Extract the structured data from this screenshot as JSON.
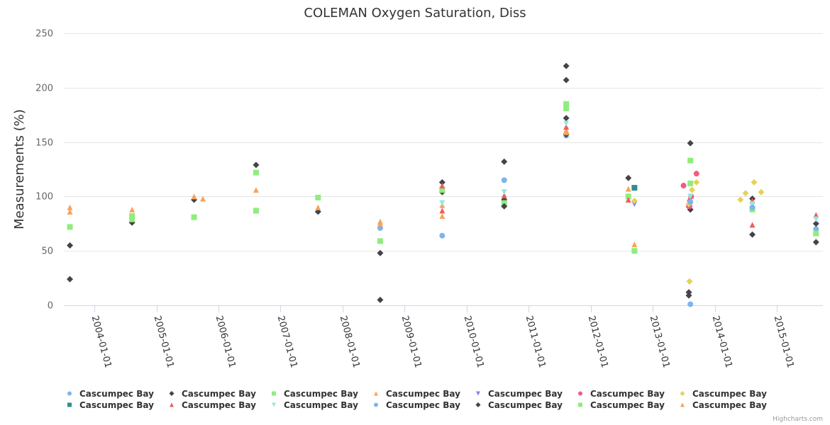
{
  "chart_data": {
    "type": "scatter",
    "title": "COLEMAN Oxygen Saturation, Diss",
    "xlabel": "",
    "ylabel": "Measurements (%)",
    "ylim": [
      0,
      250
    ],
    "yticks": [
      0,
      50,
      100,
      150,
      200,
      250
    ],
    "xlim": [
      "2003-07-01",
      "2015-10-01"
    ],
    "xticks": [
      "2004-01-01",
      "2005-01-01",
      "2006-01-01",
      "2007-01-01",
      "2008-01-01",
      "2009-01-01",
      "2010-01-01",
      "2011-01-01",
      "2012-01-01",
      "2013-01-01",
      "2014-01-01",
      "2015-01-01"
    ],
    "grid": true,
    "legend_position": "bottom",
    "credits": "Highcharts.com",
    "series": [
      {
        "name": "Cascumpec Bay",
        "marker": "circle",
        "color": "#7cb5ec",
        "points": [
          [
            "2008-08-10",
            71
          ],
          [
            "2009-08-10",
            64
          ],
          [
            "2010-08-10",
            115
          ],
          [
            "2011-08-10",
            156
          ],
          [
            "2013-08-10",
            1
          ],
          [
            "2015-08-20",
            70
          ]
        ]
      },
      {
        "name": "Cascumpec Bay",
        "marker": "diamond",
        "color": "#434348",
        "points": [
          [
            "2003-08-10",
            55
          ],
          [
            "2003-08-10",
            24
          ],
          [
            "2004-08-10",
            76
          ],
          [
            "2005-08-10",
            97
          ],
          [
            "2006-08-10",
            129
          ],
          [
            "2007-08-10",
            86
          ],
          [
            "2008-08-10",
            48
          ],
          [
            "2008-08-10",
            5
          ],
          [
            "2009-08-10",
            113
          ],
          [
            "2009-08-10",
            104
          ],
          [
            "2010-08-10",
            132
          ],
          [
            "2010-08-10",
            97
          ],
          [
            "2011-08-10",
            220
          ],
          [
            "2011-08-10",
            207
          ],
          [
            "2011-08-10",
            172
          ],
          [
            "2012-08-10",
            117
          ],
          [
            "2013-08-10",
            149
          ],
          [
            "2013-08-10",
            88
          ],
          [
            "2013-08-01",
            12
          ],
          [
            "2013-08-01",
            9
          ],
          [
            "2014-08-10",
            98
          ],
          [
            "2014-08-10",
            65
          ],
          [
            "2015-08-20",
            75
          ],
          [
            "2015-08-20",
            58
          ]
        ]
      },
      {
        "name": "Cascumpec Bay",
        "marker": "square",
        "color": "#90ed7d",
        "points": [
          [
            "2003-08-10",
            72
          ],
          [
            "2004-08-10",
            82
          ],
          [
            "2005-08-10",
            81
          ],
          [
            "2006-08-10",
            122
          ],
          [
            "2007-08-10",
            99
          ],
          [
            "2008-08-10",
            59
          ],
          [
            "2009-08-10",
            106
          ],
          [
            "2010-08-10",
            94
          ],
          [
            "2011-08-10",
            185
          ],
          [
            "2011-08-10",
            181
          ],
          [
            "2012-08-10",
            100
          ],
          [
            "2013-08-10",
            133
          ],
          [
            "2013-08-10",
            112
          ],
          [
            "2014-08-10",
            88
          ],
          [
            "2015-08-20",
            66
          ]
        ]
      },
      {
        "name": "Cascumpec Bay",
        "marker": "triangle",
        "color": "#f7a35c",
        "points": [
          [
            "2003-08-10",
            90
          ],
          [
            "2003-08-10",
            86
          ],
          [
            "2004-08-10",
            88
          ],
          [
            "2005-08-10",
            100
          ],
          [
            "2005-10-01",
            98
          ],
          [
            "2006-08-10",
            106
          ],
          [
            "2006-08-10",
            87
          ],
          [
            "2007-08-10",
            90
          ],
          [
            "2008-08-10",
            77
          ],
          [
            "2009-08-10",
            92
          ],
          [
            "2009-08-10",
            82
          ],
          [
            "2011-08-10",
            161
          ],
          [
            "2012-08-10",
            107
          ],
          [
            "2012-09-15",
            56
          ],
          [
            "2013-08-01",
            93
          ]
        ]
      },
      {
        "name": "Cascumpec Bay",
        "marker": "triangle-down",
        "color": "#8085e9",
        "points": [
          [
            "2012-09-15",
            93
          ]
        ]
      },
      {
        "name": "Cascumpec Bay",
        "marker": "circle",
        "color": "#f15c80",
        "points": [
          [
            "2013-07-01",
            110
          ],
          [
            "2013-09-15",
            121
          ],
          [
            "2013-08-01",
            91
          ],
          [
            "2013-08-05",
            91
          ],
          [
            "2013-08-15",
            100
          ]
        ]
      },
      {
        "name": "Cascumpec Bay",
        "marker": "diamond",
        "color": "#e4d354",
        "points": [
          [
            "2012-09-15",
            96
          ],
          [
            "2013-09-15",
            113
          ],
          [
            "2013-08-20",
            106
          ],
          [
            "2013-08-01",
            93
          ],
          [
            "2013-08-05",
            22
          ],
          [
            "2014-06-01",
            97
          ],
          [
            "2014-07-01",
            103
          ],
          [
            "2014-08-20",
            113
          ],
          [
            "2014-10-01",
            104
          ]
        ]
      },
      {
        "name": "Cascumpec Bay",
        "marker": "square",
        "color": "#2b908f",
        "points": [
          [
            "2012-09-15",
            108
          ]
        ]
      },
      {
        "name": "Cascumpec Bay",
        "marker": "triangle",
        "color": "#f45b5b",
        "points": [
          [
            "2009-08-10",
            110
          ],
          [
            "2009-08-10",
            87
          ],
          [
            "2010-08-10",
            101
          ],
          [
            "2011-08-10",
            164
          ],
          [
            "2012-08-10",
            97
          ],
          [
            "2013-08-05",
            98
          ],
          [
            "2014-08-10",
            96
          ],
          [
            "2014-08-10",
            74
          ],
          [
            "2015-08-20",
            83
          ]
        ]
      },
      {
        "name": "Cascumpec Bay",
        "marker": "triangle-down",
        "color": "#91e8e1",
        "points": [
          [
            "2009-08-10",
            94
          ],
          [
            "2010-08-10",
            104
          ],
          [
            "2011-08-10",
            167
          ],
          [
            "2013-08-10",
            100
          ],
          [
            "2014-08-10",
            93
          ],
          [
            "2015-08-20",
            79
          ]
        ]
      },
      {
        "name": "Cascumpec Bay",
        "marker": "circle",
        "color": "#7cb5ec",
        "points": [
          [
            "2013-08-10",
            95
          ],
          [
            "2014-08-10",
            90
          ]
        ]
      },
      {
        "name": "Cascumpec Bay",
        "marker": "diamond",
        "color": "#434348",
        "points": [
          [
            "2010-08-10",
            91
          ],
          [
            "2011-08-10",
            157
          ]
        ]
      },
      {
        "name": "Cascumpec Bay",
        "marker": "square",
        "color": "#90ed7d",
        "points": [
          [
            "2012-09-15",
            50
          ],
          [
            "2004-08-10",
            79
          ],
          [
            "2006-08-10",
            87
          ]
        ]
      },
      {
        "name": "Cascumpec Bay",
        "marker": "triangle",
        "color": "#f7a35c",
        "points": [
          [
            "2008-08-10",
            75
          ],
          [
            "2011-08-10",
            159
          ]
        ]
      }
    ]
  }
}
